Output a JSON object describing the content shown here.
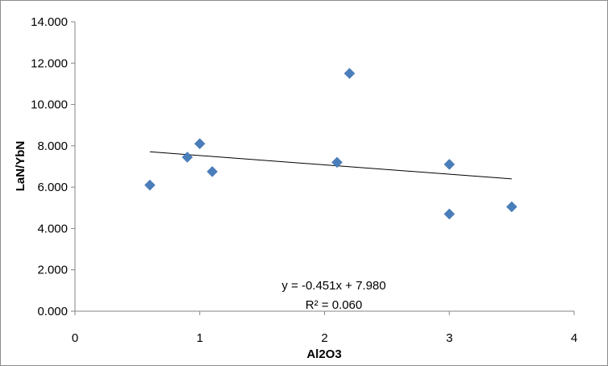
{
  "chart_data": {
    "type": "scatter",
    "title": "",
    "xlabel": "Al2O3",
    "ylabel": "LaN/YbN",
    "xlim": [
      0,
      4
    ],
    "ylim": [
      0,
      14
    ],
    "x_ticks": [
      "0",
      "1",
      "2",
      "3",
      "4"
    ],
    "y_ticks": [
      "0.000",
      "2.000",
      "4.000",
      "6.000",
      "8.000",
      "10.000",
      "12.000",
      "14.000"
    ],
    "grid": false,
    "legend": "none",
    "marker": "diamond",
    "marker_color": "#4a7ebb",
    "trendline_color": "#000000",
    "points": [
      {
        "x": 0.6,
        "y": 6.1
      },
      {
        "x": 0.9,
        "y": 7.45
      },
      {
        "x": 1.0,
        "y": 8.1
      },
      {
        "x": 1.1,
        "y": 6.75
      },
      {
        "x": 2.1,
        "y": 7.2
      },
      {
        "x": 2.2,
        "y": 11.5
      },
      {
        "x": 3.0,
        "y": 7.1
      },
      {
        "x": 3.0,
        "y": 4.7
      },
      {
        "x": 3.5,
        "y": 5.05
      }
    ],
    "trendline": {
      "type": "linear",
      "slope": -0.451,
      "intercept": 7.98,
      "x_range": [
        0.6,
        3.5
      ],
      "equation_label": "y = -0.451x + 7.980",
      "r2_label": "R² = 0.060"
    }
  }
}
